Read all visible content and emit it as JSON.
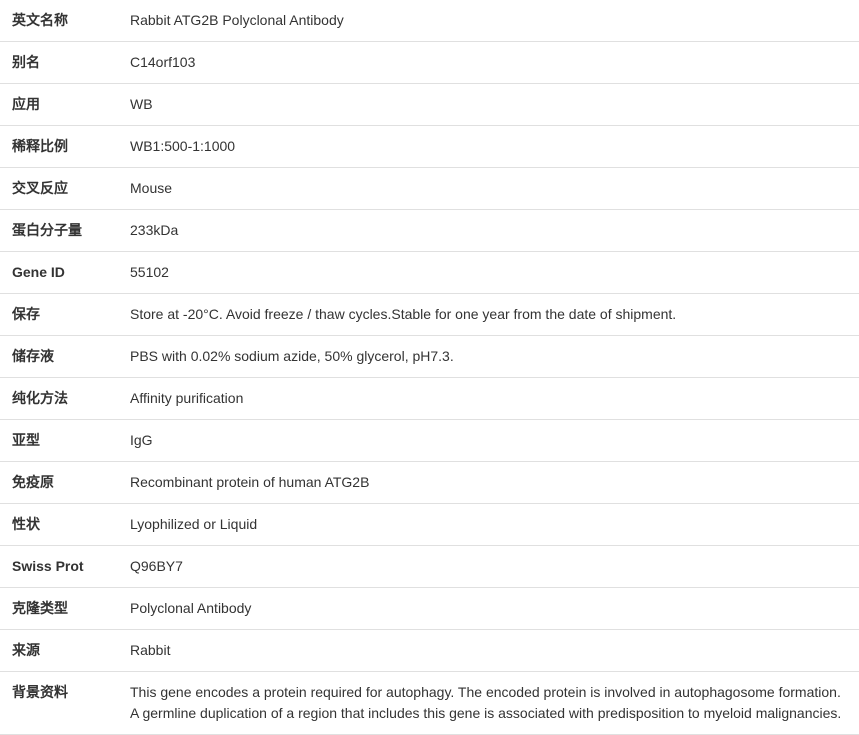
{
  "rows": [
    {
      "label": "英文名称",
      "value": "Rabbit ATG2B Polyclonal Antibody"
    },
    {
      "label": "别名",
      "value": "C14orf103"
    },
    {
      "label": "应用",
      "value": "WB"
    },
    {
      "label": "稀释比例",
      "value": "WB1:500-1:1000"
    },
    {
      "label": "交叉反应",
      "value": "Mouse"
    },
    {
      "label": "蛋白分子量",
      "value": "233kDa"
    },
    {
      "label": "Gene ID",
      "value": "55102"
    },
    {
      "label": "保存",
      "value": "Store at -20°C. Avoid freeze / thaw cycles.Stable for one year from the date of shipment."
    },
    {
      "label": "储存液",
      "value": "PBS with 0.02% sodium azide, 50% glycerol, pH7.3."
    },
    {
      "label": "纯化方法",
      "value": "Affinity purification"
    },
    {
      "label": "亚型",
      "value": "IgG"
    },
    {
      "label": "免疫原",
      "value": "Recombinant protein of human ATG2B"
    },
    {
      "label": "性状",
      "value": "Lyophilized or Liquid"
    },
    {
      "label": "Swiss Prot",
      "value": "Q96BY7"
    },
    {
      "label": "克隆类型",
      "value": "Polyclonal Antibody"
    },
    {
      "label": "来源",
      "value": "Rabbit"
    },
    {
      "label": "背景资料",
      "value": "This gene encodes a protein required for autophagy. The encoded protein is involved in autophagosome formation. A germline duplication of a region that includes this gene is associated with predisposition to myeloid malignancies."
    }
  ]
}
